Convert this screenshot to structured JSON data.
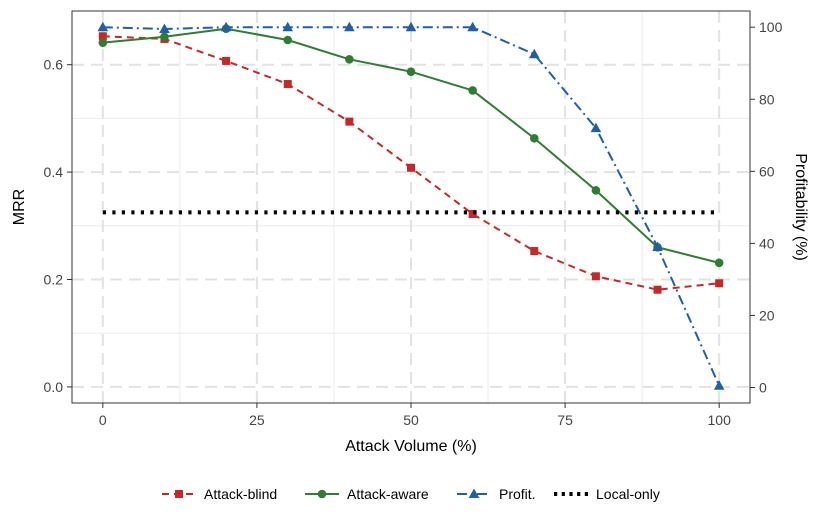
{
  "chart_data": {
    "type": "line",
    "title": "",
    "xlabel": "Attack Volume (%)",
    "ylabel": "MRR",
    "y2label": "Profitability (%)",
    "xlim": [
      -5,
      105
    ],
    "ylim": [
      -0.03,
      0.7
    ],
    "y2lim": [
      -4.3,
      104.5
    ],
    "x": [
      0,
      10,
      20,
      30,
      40,
      50,
      60,
      70,
      80,
      90,
      100
    ],
    "x_ticks": [
      0,
      25,
      50,
      75,
      100
    ],
    "x_tick_labels": [
      "0",
      "25",
      "50",
      "75",
      "100"
    ],
    "y_ticks": [
      0.0,
      0.2,
      0.4,
      0.6
    ],
    "y_tick_labels": [
      "0.0",
      "0.2",
      "0.4",
      "0.6"
    ],
    "y2_ticks": [
      0,
      20,
      40,
      60,
      80,
      100
    ],
    "y2_tick_labels": [
      "0",
      "20",
      "40",
      "60",
      "80",
      "100"
    ],
    "grid": true,
    "legend_position": "bottom",
    "series": [
      {
        "name": "Attack-blind",
        "axis": "left",
        "color": "#c62828",
        "dash": "dashed",
        "marker": "square",
        "values": [
          0.653,
          0.648,
          0.607,
          0.564,
          0.494,
          0.408,
          0.322,
          0.253,
          0.206,
          0.181,
          0.193
        ]
      },
      {
        "name": "Attack-aware",
        "axis": "left",
        "color": "#2e7d32",
        "dash": "solid",
        "marker": "circle",
        "values": [
          0.641,
          0.652,
          0.667,
          0.646,
          0.61,
          0.587,
          0.552,
          0.463,
          0.366,
          0.26,
          0.231
        ]
      },
      {
        "name": "Profit.",
        "axis": "right",
        "color": "#1f5fa8",
        "dash": "dashdot",
        "marker": "triangle",
        "values": [
          100,
          99.5,
          100,
          100,
          100,
          100,
          100,
          92.5,
          72,
          39,
          0.5
        ]
      },
      {
        "name": "Local-only",
        "axis": "left",
        "color": "#000000",
        "dash": "dotted",
        "marker": "none",
        "x": [
          0,
          100
        ],
        "values": [
          0.325,
          0.325
        ]
      }
    ]
  }
}
